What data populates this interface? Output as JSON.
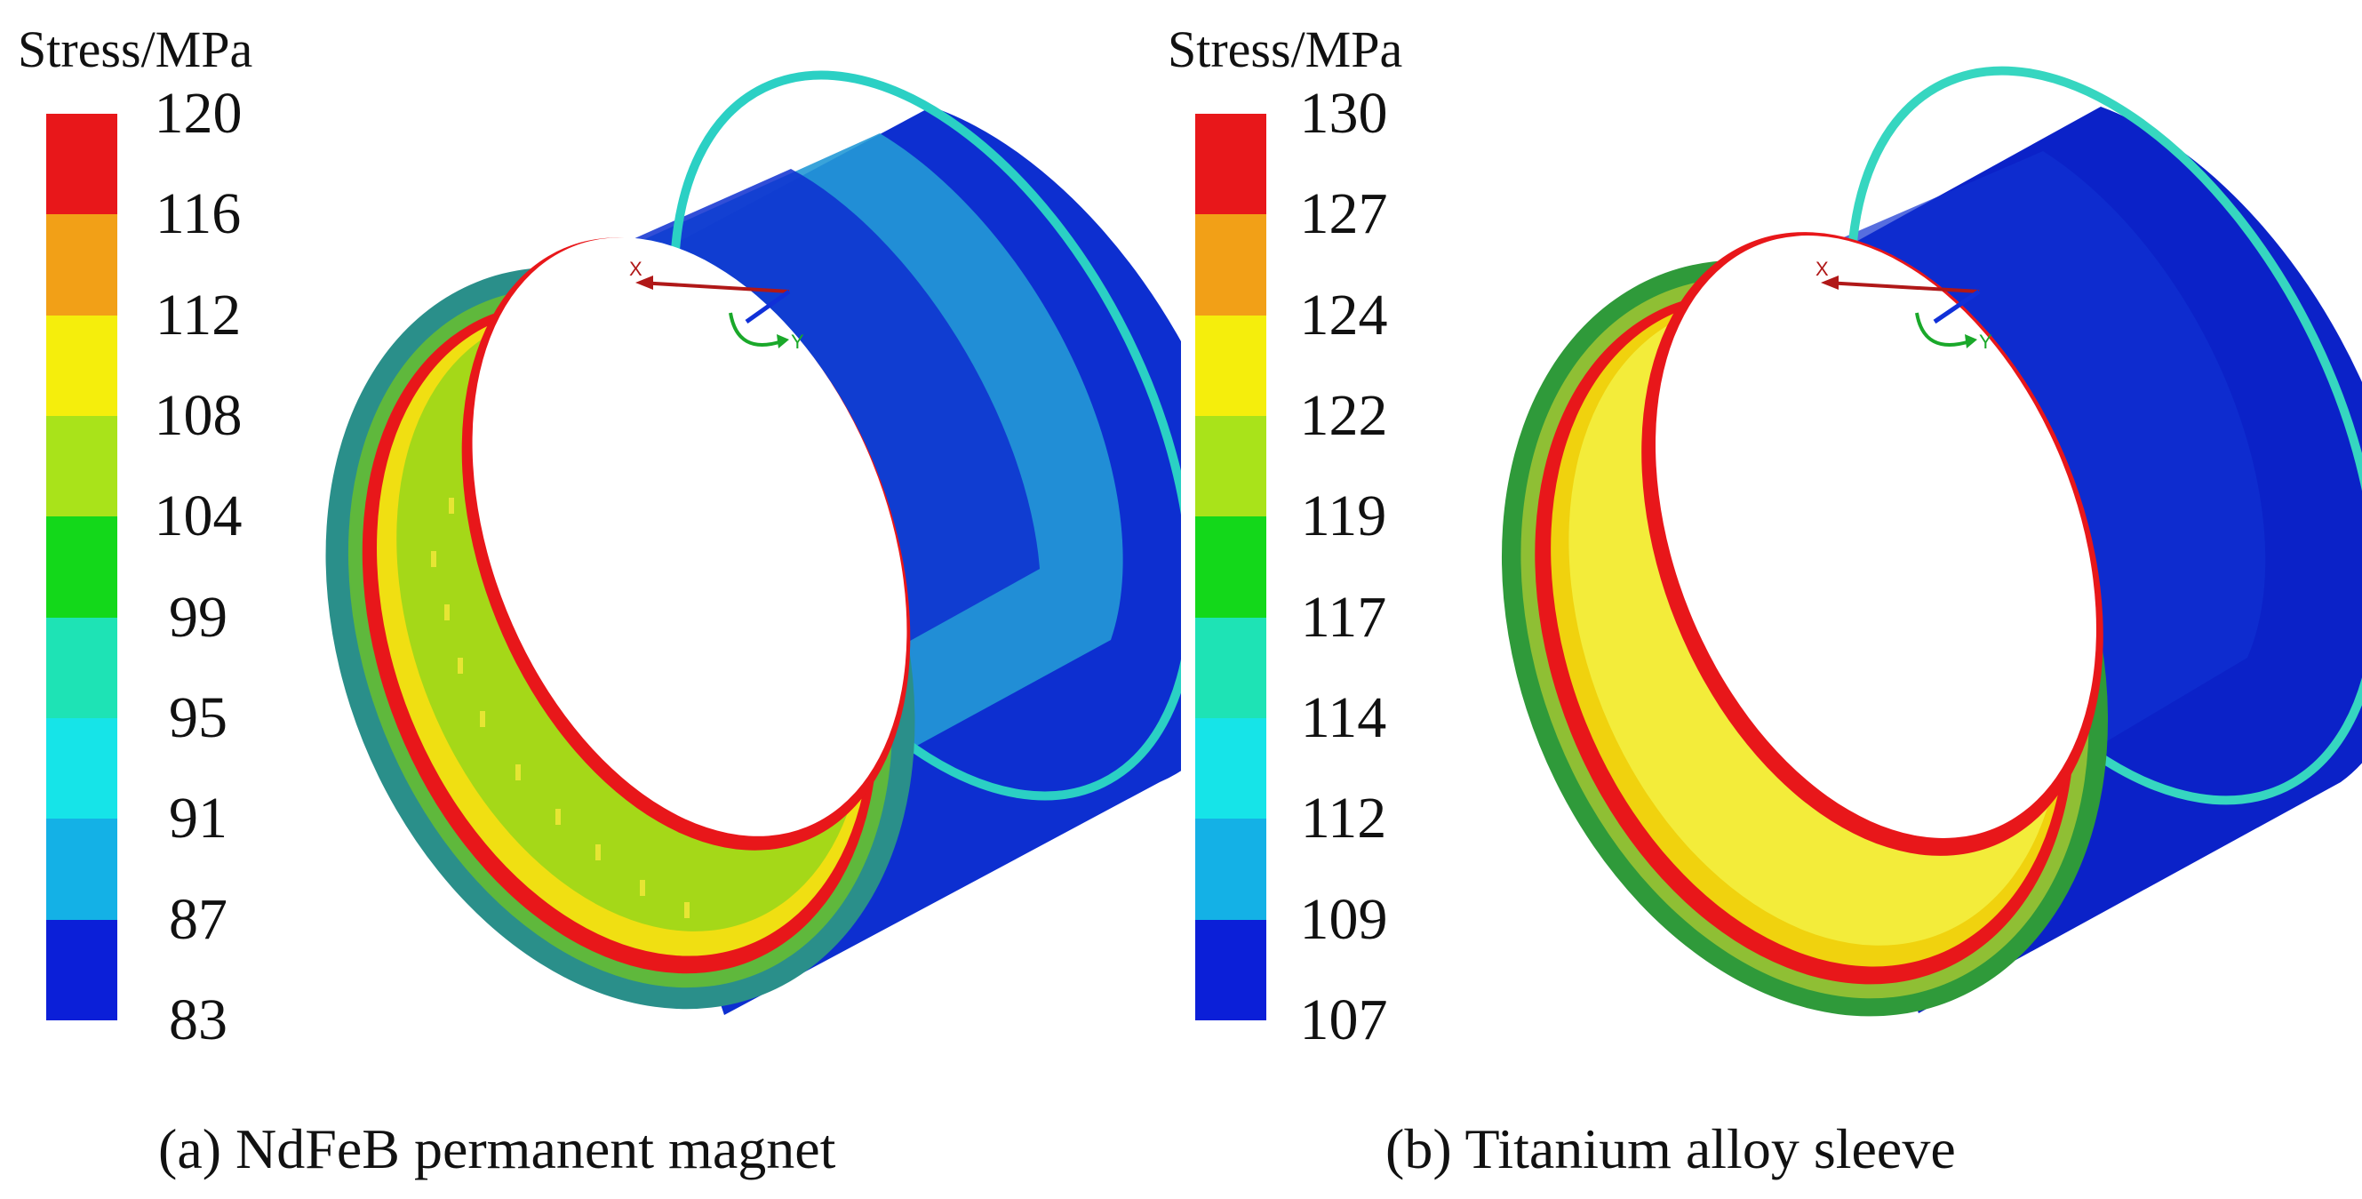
{
  "figure": {
    "panels": [
      {
        "id": "a",
        "legend_title": "Stress/MPa",
        "ticks": [
          "120",
          "116",
          "112",
          "108",
          "104",
          "99",
          "95",
          "91",
          "87",
          "83"
        ],
        "caption": "(a) NdFeB permanent magnet",
        "axes": {
          "x": "X",
          "y": "Y"
        }
      },
      {
        "id": "b",
        "legend_title": "Stress/MPa",
        "ticks": [
          "130",
          "127",
          "124",
          "122",
          "119",
          "117",
          "114",
          "112",
          "109",
          "107"
        ],
        "caption": "(b) Titanium alloy sleeve",
        "axes": {
          "x": "X",
          "y": "Y"
        }
      }
    ]
  },
  "colors": {
    "bands_top_to_bottom": [
      "#e8171a",
      "#f2a017",
      "#f5ee0c",
      "#a9e31a",
      "#13d81a",
      "#1ee3b5",
      "#16e4e8",
      "#14b1e6",
      "#0b1fd8"
    ],
    "axis_x": "#b01818",
    "axis_y": "#1aa82a",
    "axis_z": "#1030d8"
  }
}
